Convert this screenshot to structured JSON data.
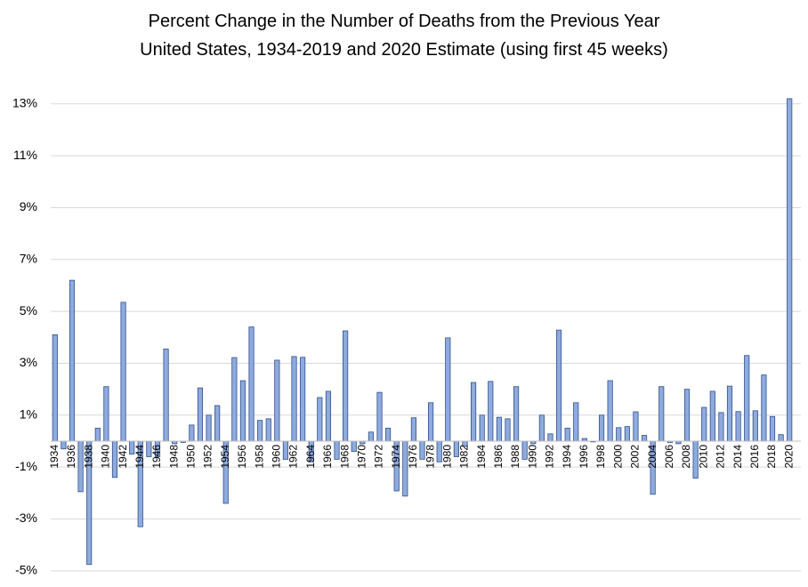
{
  "chart_data": {
    "type": "bar",
    "title": "Percent Change in the Number of Deaths from the Previous Year",
    "subtitle": "United States, 1934-2019  and 2020 Estimate (using first 45 weeks)",
    "categories": [
      "1934",
      null,
      "1936",
      null,
      "1938",
      null,
      "1940",
      null,
      "1942",
      null,
      "1944",
      null,
      "1946",
      null,
      "1948",
      null,
      "1950",
      null,
      "1952",
      null,
      "1954",
      null,
      "1956",
      null,
      "1958",
      null,
      "1960",
      null,
      "1962",
      null,
      "1964",
      null,
      "1966",
      null,
      "1968",
      null,
      "1970",
      null,
      "1972",
      null,
      "1974",
      null,
      "1976",
      null,
      "1978",
      null,
      "1980",
      null,
      "1982",
      null,
      "1984",
      null,
      "1986",
      null,
      "1988",
      null,
      "1990",
      null,
      "1992",
      null,
      "1994",
      null,
      "1996",
      null,
      "1998",
      null,
      "2000",
      null,
      "2002",
      null,
      "2004",
      null,
      "2006",
      null,
      "2008",
      null,
      "2010",
      null,
      "2012",
      null,
      "2014",
      null,
      "2016",
      null,
      "2018",
      null,
      "2020"
    ],
    "values": [
      4.1,
      -0.3,
      6.2,
      -1.95,
      -4.75,
      0.5,
      2.1,
      -1.4,
      5.35,
      -0.5,
      -3.3,
      -0.6,
      -0.6,
      3.55,
      -0.1,
      -0.05,
      0.62,
      2.05,
      1.0,
      1.37,
      -2.4,
      3.22,
      2.33,
      4.4,
      0.8,
      0.86,
      3.12,
      -0.7,
      3.26,
      3.23,
      -0.8,
      1.68,
      1.92,
      -0.7,
      4.25,
      -0.4,
      -0.1,
      0.35,
      1.88,
      0.5,
      -1.92,
      -2.12,
      0.9,
      -0.7,
      1.48,
      -0.8,
      3.98,
      -0.6,
      -0.2,
      2.26,
      1.0,
      2.3,
      0.92,
      0.86,
      2.1,
      -0.7,
      -0.1,
      1.0,
      0.28,
      4.28,
      0.5,
      1.48,
      0.1,
      -0.03,
      1.0,
      2.33,
      0.52,
      0.56,
      1.13,
      0.22,
      -2.05,
      2.1,
      -0.05,
      -0.1,
      2.0,
      -1.43,
      1.3,
      1.92,
      1.1,
      2.12,
      1.14,
      3.3,
      1.17,
      2.55,
      0.95,
      0.25,
      13.2
    ],
    "color": "#8faadc",
    "ylim": [
      -5.5,
      14
    ],
    "yticks": [
      {
        "value": -5,
        "label": "-5%"
      },
      {
        "value": -3,
        "label": "-3%"
      },
      {
        "value": -1,
        "label": "-1%"
      },
      {
        "value": 1,
        "label": "1%"
      },
      {
        "value": 3,
        "label": "3%"
      },
      {
        "value": 5,
        "label": "5%"
      },
      {
        "value": 7,
        "label": "7%"
      },
      {
        "value": 9,
        "label": "9%"
      },
      {
        "value": 11,
        "label": "11%"
      },
      {
        "value": 13,
        "label": "13%"
      }
    ],
    "grid": true
  }
}
